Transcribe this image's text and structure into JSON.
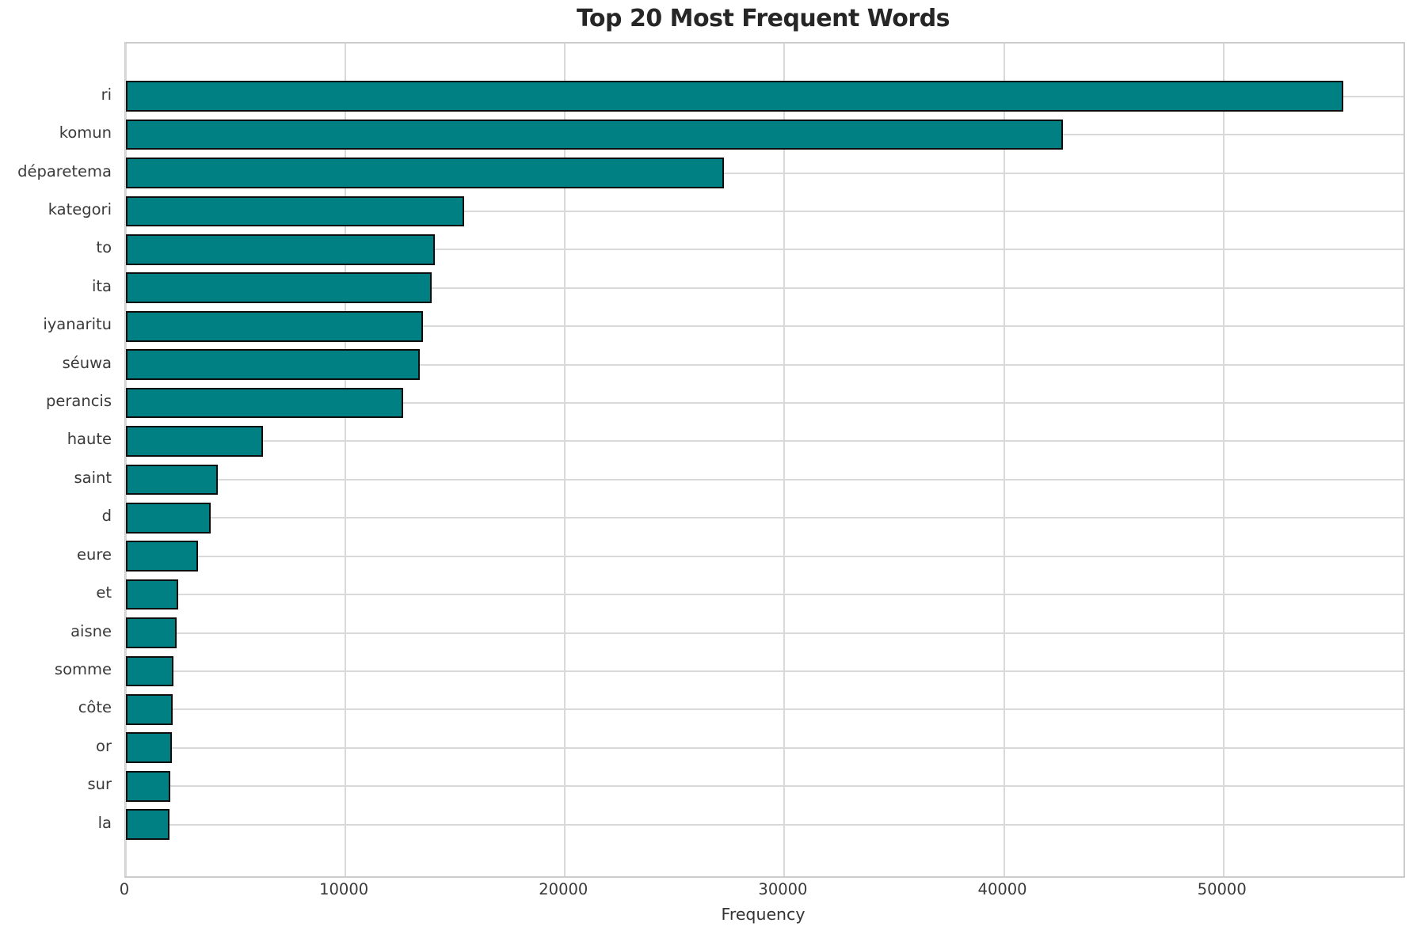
{
  "title": "Top 20 Most Frequent Words",
  "chart_data": {
    "type": "bar",
    "orientation": "horizontal",
    "title": "Top 20 Most Frequent Words",
    "xlabel": "Frequency",
    "ylabel": "",
    "categories": [
      "ri",
      "komun",
      "déparetema",
      "kategori",
      "to",
      "ita",
      "iyanaritu",
      "séuwa",
      "perancis",
      "haute",
      "saint",
      "d",
      "eure",
      "et",
      "aisne",
      "somme",
      "côte",
      "or",
      "sur",
      "la"
    ],
    "values": [
      55450,
      42700,
      27250,
      15410,
      14060,
      13940,
      13520,
      13400,
      12640,
      6240,
      4170,
      3860,
      3270,
      2370,
      2300,
      2180,
      2130,
      2090,
      2030,
      1990
    ],
    "xlim": [
      0,
      58200
    ],
    "xticks": [
      0,
      10000,
      20000,
      30000,
      40000,
      50000
    ],
    "grid": true,
    "legend_position": "none",
    "colors": {
      "bar_fill": "#008083",
      "bar_edge": "#0d0d0d",
      "grid": "#d9d9d9",
      "spine": "#cccccc",
      "tick_text": "#3a3a3a",
      "title_text": "#262626",
      "background": "#ffffff"
    }
  }
}
